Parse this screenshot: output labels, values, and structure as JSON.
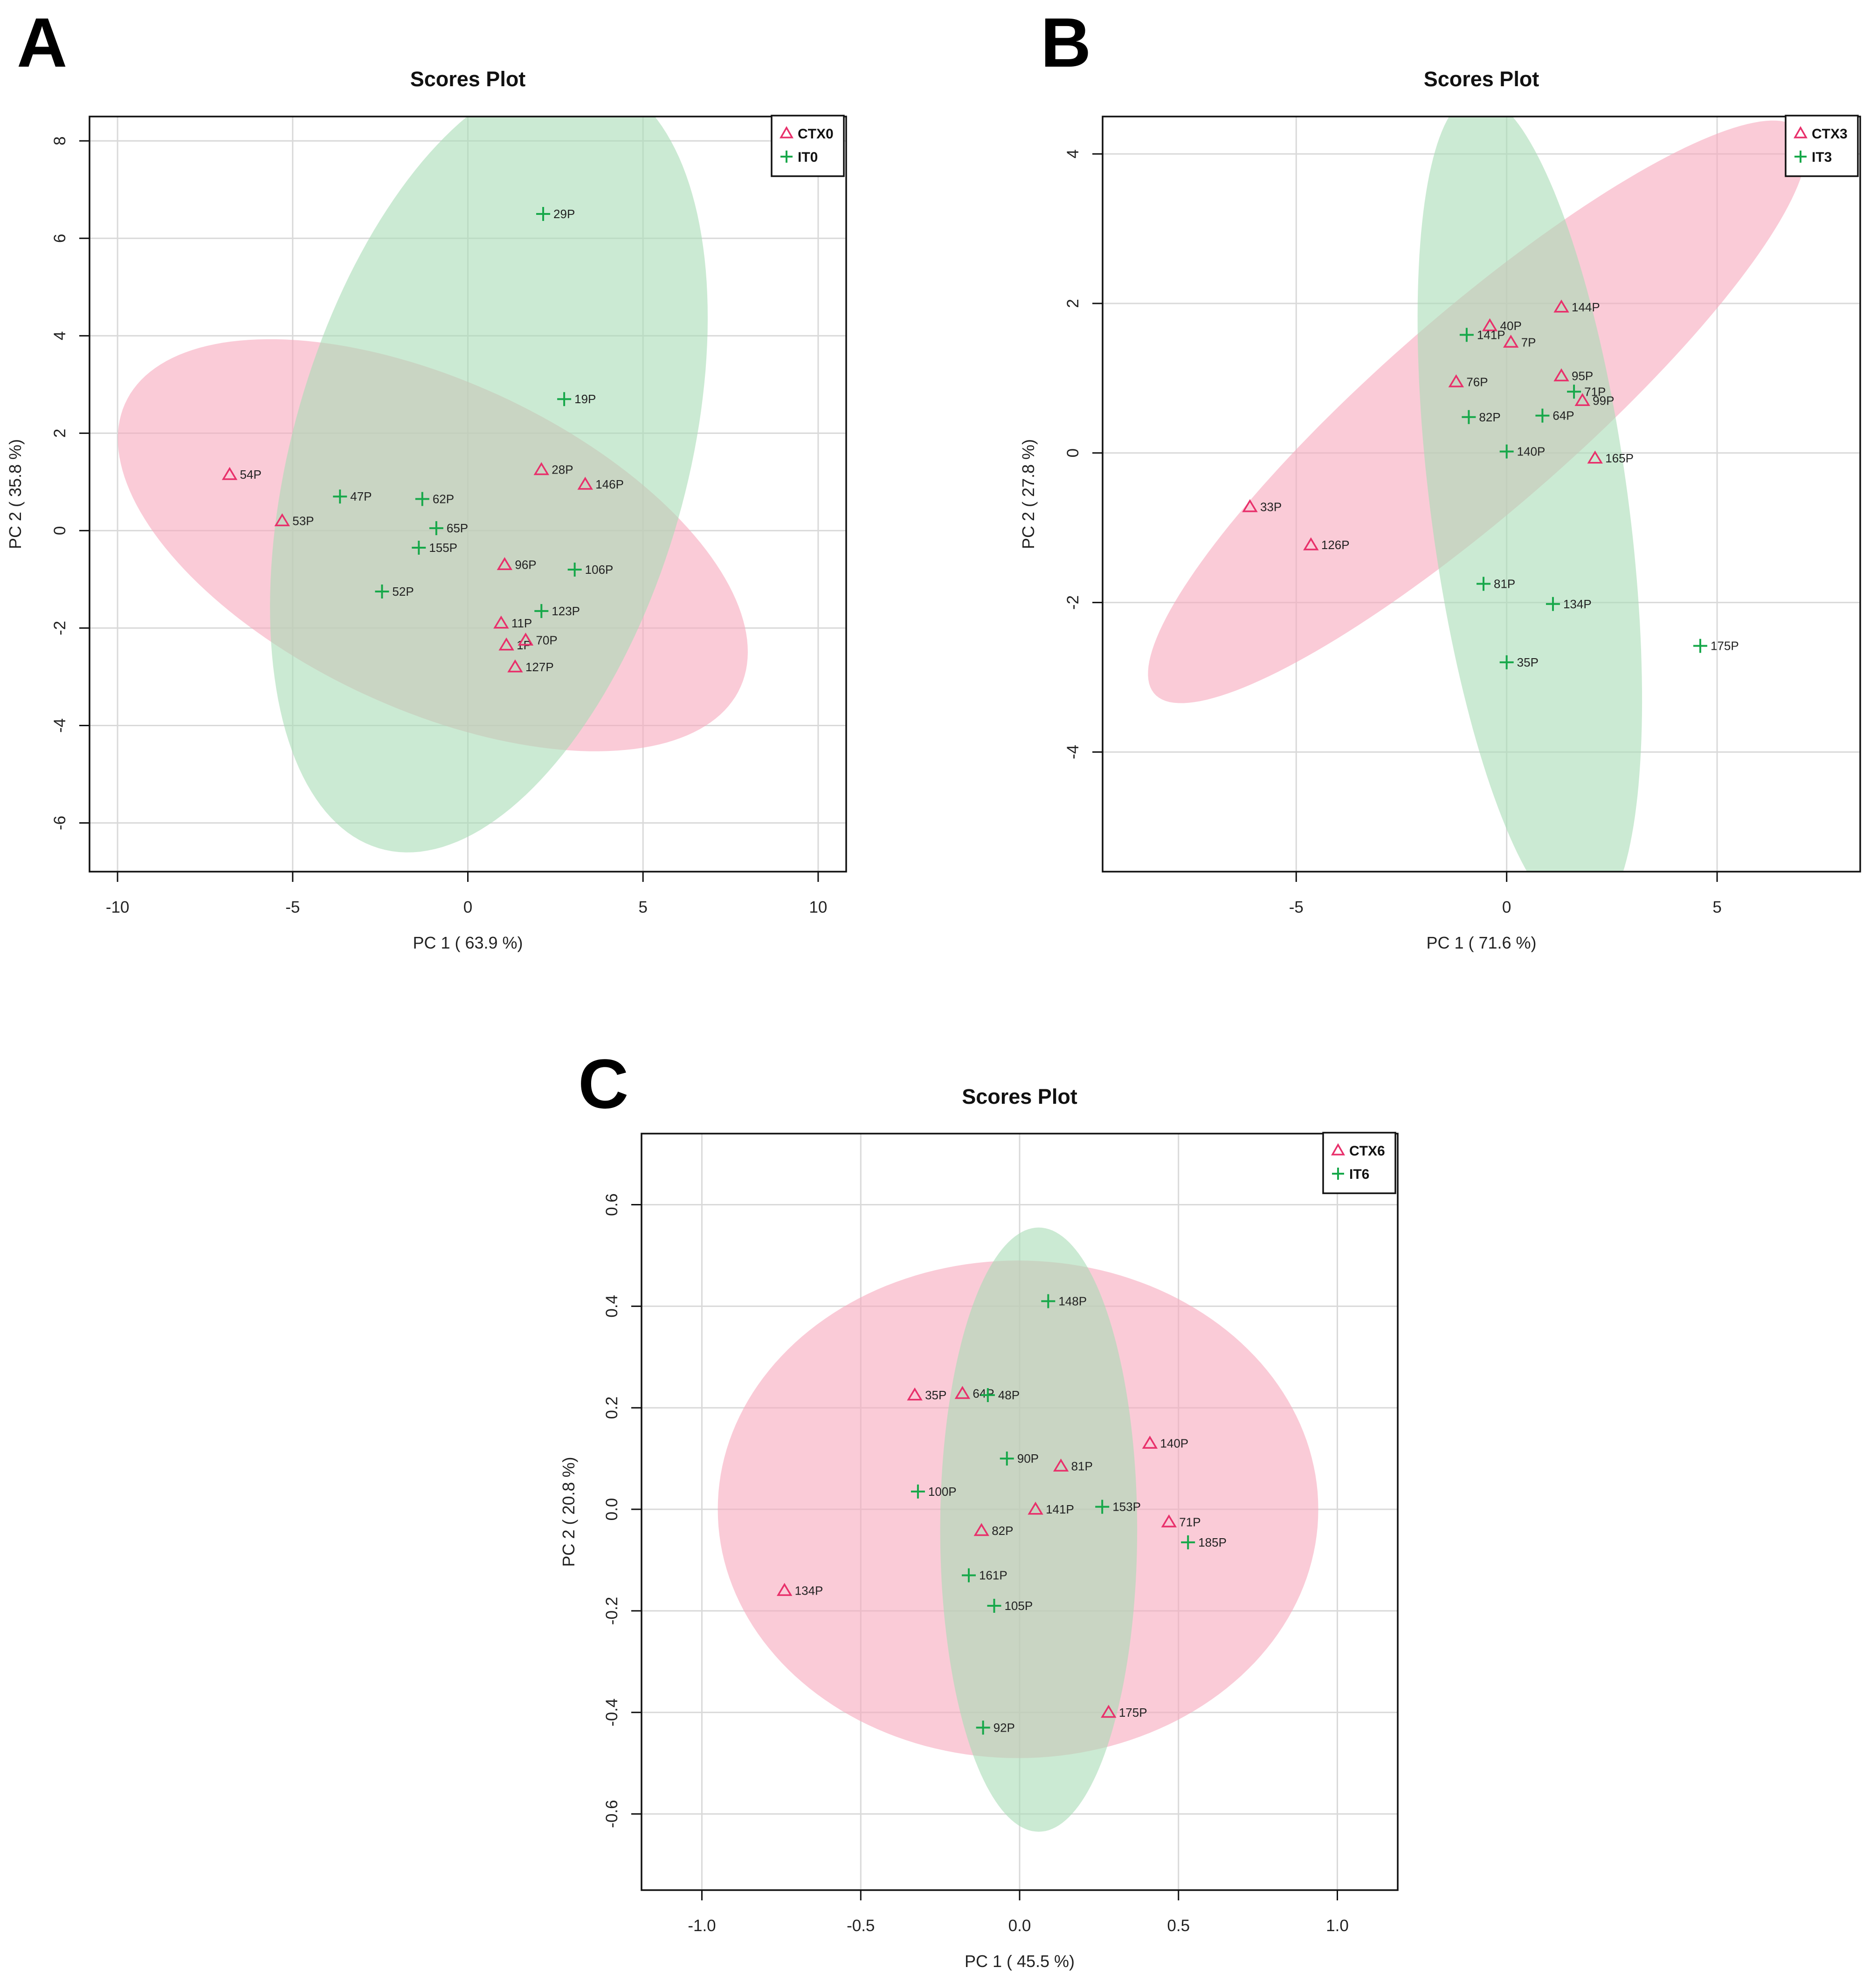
{
  "colors": {
    "ctx": "#e8306b",
    "it": "#17a84a",
    "ctx_fill": "#f7a8bc",
    "it_fill": "#a8dcb6",
    "overlap_fill": "#d6bfae"
  },
  "chart_data": [
    {
      "panel": "A",
      "type": "scatter",
      "title": "Scores Plot",
      "xlabel": "PC 1 ( 63.9 %)",
      "ylabel": "PC 2 ( 35.8 %)",
      "xlim": [
        -10.8,
        10.8
      ],
      "ylim": [
        -7,
        8.5
      ],
      "xticks": [
        -10,
        -5,
        0,
        5,
        10
      ],
      "yticks": [
        -6,
        -4,
        -2,
        0,
        2,
        4,
        6,
        8
      ],
      "grid": true,
      "legend_position": "top-right",
      "series": [
        {
          "name": "CTX0",
          "marker": "triangle",
          "color": "#e8306b",
          "points": [
            {
              "label": "54P",
              "x": -6.8,
              "y": 1.15
            },
            {
              "label": "53P",
              "x": -5.3,
              "y": 0.2
            },
            {
              "label": "28P",
              "x": 2.1,
              "y": 1.25
            },
            {
              "label": "146P",
              "x": 3.35,
              "y": 0.95
            },
            {
              "label": "96P",
              "x": 1.05,
              "y": -0.7
            },
            {
              "label": "11P",
              "x": 0.95,
              "y": -1.9
            },
            {
              "label": "1P",
              "x": 1.1,
              "y": -2.35
            },
            {
              "label": "70P",
              "x": 1.65,
              "y": -2.25
            },
            {
              "label": "127P",
              "x": 1.35,
              "y": -2.8
            }
          ],
          "ellipse": {
            "cx": -1.0,
            "cy": -0.3,
            "rx": 9.3,
            "ry": 3.5,
            "angle_deg": -16
          }
        },
        {
          "name": "IT0",
          "marker": "plus",
          "color": "#17a84a",
          "points": [
            {
              "label": "29P",
              "x": 2.15,
              "y": 6.5
            },
            {
              "label": "19P",
              "x": 2.75,
              "y": 2.7
            },
            {
              "label": "47P",
              "x": -3.65,
              "y": 0.7
            },
            {
              "label": "62P",
              "x": -1.3,
              "y": 0.65
            },
            {
              "label": "65P",
              "x": -0.9,
              "y": 0.05
            },
            {
              "label": "155P",
              "x": -1.4,
              "y": -0.35
            },
            {
              "label": "106P",
              "x": 3.05,
              "y": -0.8
            },
            {
              "label": "52P",
              "x": -2.45,
              "y": -1.25
            },
            {
              "label": "123P",
              "x": 2.1,
              "y": -1.65
            }
          ],
          "ellipse": {
            "cx": 0.6,
            "cy": 1.4,
            "rx": 8.6,
            "ry": 5.4,
            "angle_deg": 62
          }
        }
      ]
    },
    {
      "panel": "B",
      "type": "scatter",
      "title": "Scores Plot",
      "xlabel": "PC 1 ( 71.6 %)",
      "ylabel": "PC 2 ( 27.8 %)",
      "xlim": [
        -9.6,
        8.4
      ],
      "ylim": [
        -5.6,
        4.5
      ],
      "xticks": [
        -5,
        0,
        5
      ],
      "yticks": [
        -4,
        -2,
        0,
        2,
        4
      ],
      "grid": true,
      "legend_position": "top-right",
      "series": [
        {
          "name": "CTX3",
          "marker": "triangle",
          "color": "#e8306b",
          "points": [
            {
              "label": "144P",
              "x": 1.3,
              "y": 1.95
            },
            {
              "label": "40P",
              "x": -0.4,
              "y": 1.7
            },
            {
              "label": "7P",
              "x": 0.1,
              "y": 1.48
            },
            {
              "label": "76P",
              "x": -1.2,
              "y": 0.95
            },
            {
              "label": "95P",
              "x": 1.3,
              "y": 1.03
            },
            {
              "label": "99P",
              "x": 1.8,
              "y": 0.7
            },
            {
              "label": "165P",
              "x": 2.1,
              "y": -0.07
            },
            {
              "label": "33P",
              "x": -6.1,
              "y": -0.72
            },
            {
              "label": "126P",
              "x": -4.65,
              "y": -1.23
            }
          ],
          "ellipse": {
            "cx": -0.7,
            "cy": 0.55,
            "rx": 8.6,
            "ry": 1.55,
            "angle_deg": 25
          }
        },
        {
          "name": "IT3",
          "marker": "plus",
          "color": "#17a84a",
          "points": [
            {
              "label": "141P",
              "x": -0.95,
              "y": 1.58
            },
            {
              "label": "71P",
              "x": 1.6,
              "y": 0.82
            },
            {
              "label": "82P",
              "x": -0.9,
              "y": 0.48
            },
            {
              "label": "64P",
              "x": 0.85,
              "y": 0.5
            },
            {
              "label": "140P",
              "x": 0.0,
              "y": 0.02
            },
            {
              "label": "81P",
              "x": -0.55,
              "y": -1.75
            },
            {
              "label": "134P",
              "x": 1.1,
              "y": -2.02
            },
            {
              "label": "35P",
              "x": 0.0,
              "y": -2.8
            },
            {
              "label": "175P",
              "x": 4.6,
              "y": -2.58
            }
          ],
          "ellipse": {
            "cx": 0.55,
            "cy": -0.75,
            "rx": 5.7,
            "ry": 2.3,
            "angle_deg": -75
          }
        }
      ]
    },
    {
      "panel": "C",
      "type": "scatter",
      "title": "Scores Plot",
      "xlabel": "PC 1 ( 45.5 %)",
      "ylabel": "PC 2 ( 20.8 %)",
      "xlim": [
        -1.19,
        1.19
      ],
      "ylim": [
        -0.75,
        0.74
      ],
      "xticks": [
        -1.0,
        -0.5,
        0.0,
        0.5,
        1.0
      ],
      "tick_labels_x": [
        "-1.0",
        "-0.5",
        "0.0",
        "0.5",
        "1.0"
      ],
      "yticks": [
        -0.6,
        -0.4,
        -0.2,
        0.0,
        0.2,
        0.4,
        0.6
      ],
      "tick_labels_y": [
        "-0.6",
        "-0.4",
        "-0.2",
        "0.0",
        "0.2",
        "0.4",
        "0.6"
      ],
      "grid": true,
      "legend_position": "top-right",
      "series": [
        {
          "name": "CTX6",
          "marker": "triangle",
          "color": "#e8306b",
          "points": [
            {
              "label": "35P",
              "x": -0.33,
              "y": 0.225
            },
            {
              "label": "64P",
              "x": -0.18,
              "y": 0.228
            },
            {
              "label": "140P",
              "x": 0.41,
              "y": 0.13
            },
            {
              "label": "81P",
              "x": 0.13,
              "y": 0.085
            },
            {
              "label": "141P",
              "x": 0.05,
              "y": 0.0
            },
            {
              "label": "71P",
              "x": 0.47,
              "y": -0.025
            },
            {
              "label": "82P",
              "x": -0.12,
              "y": -0.042
            },
            {
              "label": "134P",
              "x": -0.74,
              "y": -0.16
            },
            {
              "label": "175P",
              "x": 0.28,
              "y": -0.4
            }
          ],
          "ellipse": {
            "cx": -0.005,
            "cy": 0.0,
            "rx": 0.945,
            "ry": 0.49,
            "angle_deg": 0
          }
        },
        {
          "name": "IT6",
          "marker": "plus",
          "color": "#17a84a",
          "points": [
            {
              "label": "148P",
              "x": 0.09,
              "y": 0.41
            },
            {
              "label": "48P",
              "x": -0.1,
              "y": 0.225
            },
            {
              "label": "90P",
              "x": -0.04,
              "y": 0.1
            },
            {
              "label": "100P",
              "x": -0.32,
              "y": 0.035
            },
            {
              "label": "153P",
              "x": 0.26,
              "y": 0.005
            },
            {
              "label": "185P",
              "x": 0.53,
              "y": -0.065
            },
            {
              "label": "161P",
              "x": -0.16,
              "y": -0.13
            },
            {
              "label": "105P",
              "x": -0.08,
              "y": -0.19
            },
            {
              "label": "92P",
              "x": -0.115,
              "y": -0.43
            }
          ],
          "ellipse": {
            "cx": 0.06,
            "cy": -0.04,
            "rx": 0.31,
            "ry": 0.595,
            "angle_deg": 0
          }
        }
      ]
    }
  ]
}
